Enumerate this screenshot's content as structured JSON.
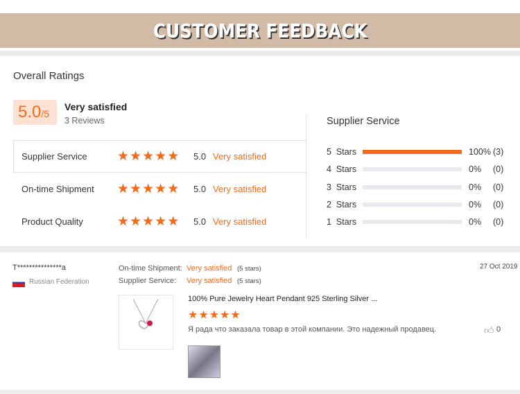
{
  "banner": {
    "title": "CUSTOMER FEEDBACK"
  },
  "overall": {
    "heading": "Overall Ratings",
    "score": "5.0",
    "out_of": "/5",
    "label": "Very satisfied",
    "reviews": "3 Reviews",
    "rows": [
      {
        "label": "Supplier Service",
        "stars": 5,
        "value": "5.0",
        "text": "Very satisfied"
      },
      {
        "label": "On-time Shipment",
        "stars": 5,
        "value": "5.0",
        "text": "Very satisfied"
      },
      {
        "label": "Product Quality",
        "stars": 5,
        "value": "5.0",
        "text": "Very satisfied"
      }
    ]
  },
  "breakdown": {
    "title": "Supplier Service",
    "rows": [
      {
        "label": "5  Stars",
        "percent": 100,
        "pct": "100%",
        "count": "(3)"
      },
      {
        "label": "4  Stars",
        "percent": 0,
        "pct": "0%",
        "count": "(0)"
      },
      {
        "label": "3  Stars",
        "percent": 0,
        "pct": "0%",
        "count": "(0)"
      },
      {
        "label": "2  Stars",
        "percent": 0,
        "pct": "0%",
        "count": "(0)"
      },
      {
        "label": "1  Stars",
        "percent": 0,
        "pct": "0%",
        "count": "(0)"
      }
    ]
  },
  "review": {
    "user": "T***************a",
    "country": "Russian Federation",
    "date": "27 Oct 2019",
    "ship_label": "On-time Shipment:",
    "ship_value": "Very satisfied",
    "ship_stars": "(5 stars)",
    "serv_label": "Supplier Service:",
    "serv_value": "Very satisfied",
    "serv_stars": "(5 stars)",
    "product": "100% Pure Jewelry Heart Pendant 925 Sterling Silver ...",
    "rating": 5,
    "text": "Я рада что заказала товар в этой компании. Это надежный продавец.",
    "likes": "0"
  },
  "colors": {
    "accent": "#f26a1b",
    "banner": "#d2bba6"
  }
}
